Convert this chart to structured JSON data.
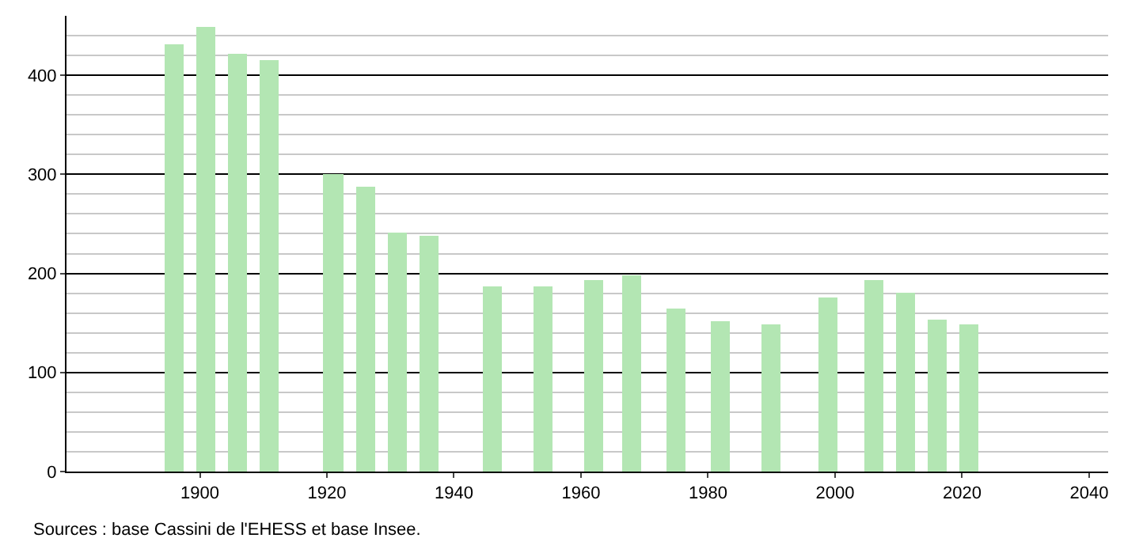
{
  "chart_data": {
    "type": "bar",
    "x": [
      1896,
      1901,
      1906,
      1911,
      1921,
      1926,
      1931,
      1936,
      1946,
      1954,
      1962,
      1968,
      1975,
      1982,
      1990,
      1999,
      2006,
      2011,
      2016,
      2021
    ],
    "values": [
      432,
      449,
      422,
      416,
      300,
      287,
      241,
      238,
      187,
      187,
      194,
      198,
      165,
      152,
      149,
      175,
      194,
      181,
      154,
      149
    ],
    "color": "#b3e6b3",
    "xlim": [
      1879,
      2043
    ],
    "xticks": [
      1900,
      1920,
      1940,
      1960,
      1980,
      2000,
      2020,
      2040
    ],
    "ylim": [
      0,
      460
    ],
    "yticks": [
      0,
      {
        "value": 20,
        "label": null
      },
      {
        "value": 40,
        "label": null
      },
      {
        "value": 60,
        "label": null
      },
      {
        "value": 80,
        "label": null
      },
      100,
      {
        "value": 120,
        "label": null
      },
      {
        "value": 140,
        "label": null
      },
      {
        "value": 160,
        "label": null
      },
      {
        "value": 180,
        "label": null
      },
      200,
      {
        "value": 220,
        "label": null
      },
      {
        "value": 240,
        "label": null
      },
      {
        "value": 260,
        "label": null
      },
      {
        "value": 280,
        "label": null
      },
      300,
      {
        "value": 320,
        "label": null
      },
      {
        "value": 340,
        "label": null
      },
      {
        "value": 360,
        "label": null
      },
      {
        "value": 380,
        "label": null
      },
      400,
      {
        "value": 420,
        "label": null
      },
      {
        "value": 440,
        "label": null
      }
    ],
    "grid": "y",
    "annotations": [
      "Sources : base Cassini de l'EHESS et base Insee."
    ]
  }
}
